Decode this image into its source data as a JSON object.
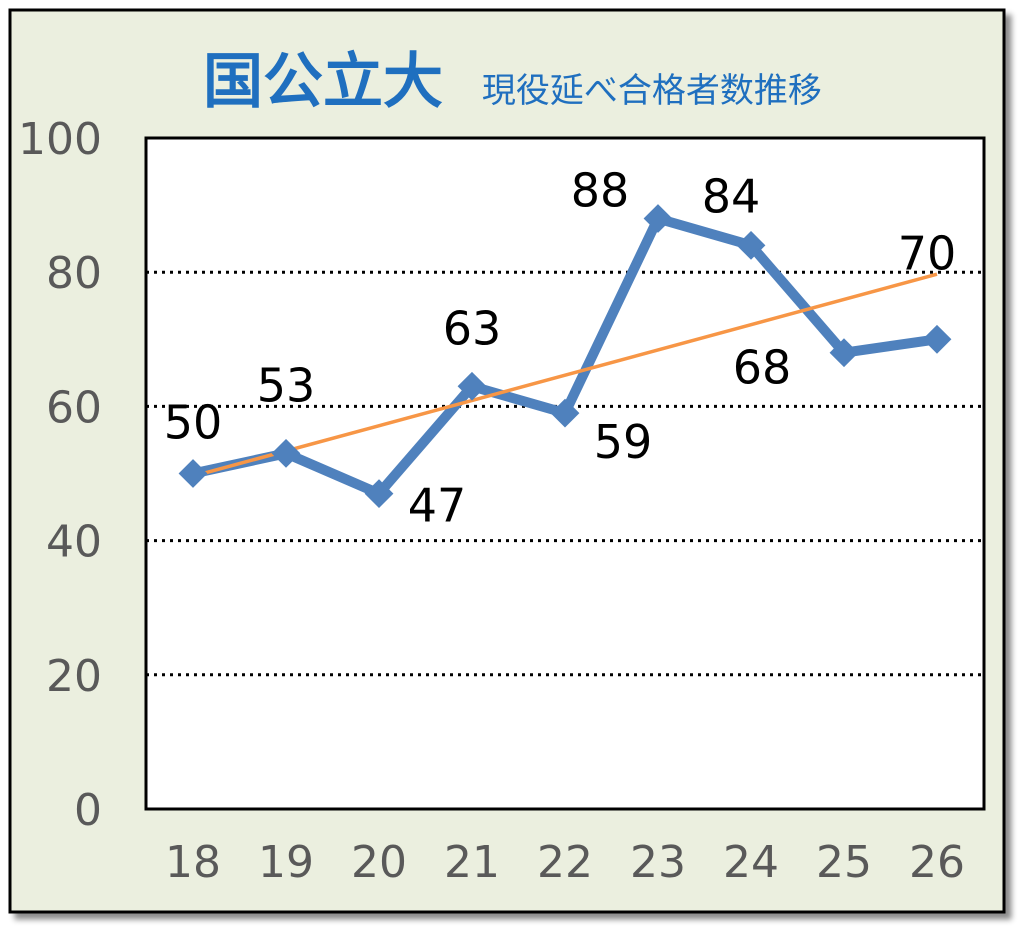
{
  "title_main": "国公立大",
  "title_sub": "現役延べ合格者数推移",
  "colors": {
    "background": "#ebefdf",
    "plot_background": "#ffffff",
    "series": "#4f81bd",
    "trend": "#f79646",
    "title": "#1f6fbf",
    "tick_text": "#595959",
    "label_text": "#000000"
  },
  "chart_data": {
    "type": "line",
    "title": "国公立大 現役延べ合格者数推移",
    "xlabel": "",
    "ylabel": "",
    "categories": [
      "18",
      "19",
      "20",
      "21",
      "22",
      "23",
      "24",
      "25",
      "26"
    ],
    "series": [
      {
        "values": [
          50,
          53,
          47,
          63,
          59,
          88,
          84,
          68,
          70
        ],
        "marker": "diamond",
        "data_labels": [
          "50",
          "53",
          "47",
          "63",
          "59",
          "88",
          "84",
          "68",
          "70"
        ]
      }
    ],
    "trendline": {
      "type": "linear",
      "start_value": 49.6,
      "end_value": 79.7
    },
    "ylim": [
      0,
      100
    ],
    "yticks": [
      0,
      20,
      40,
      60,
      80,
      100
    ],
    "grid": "horizontal dotted at 20, 40, 60, 80",
    "legend": "none"
  }
}
